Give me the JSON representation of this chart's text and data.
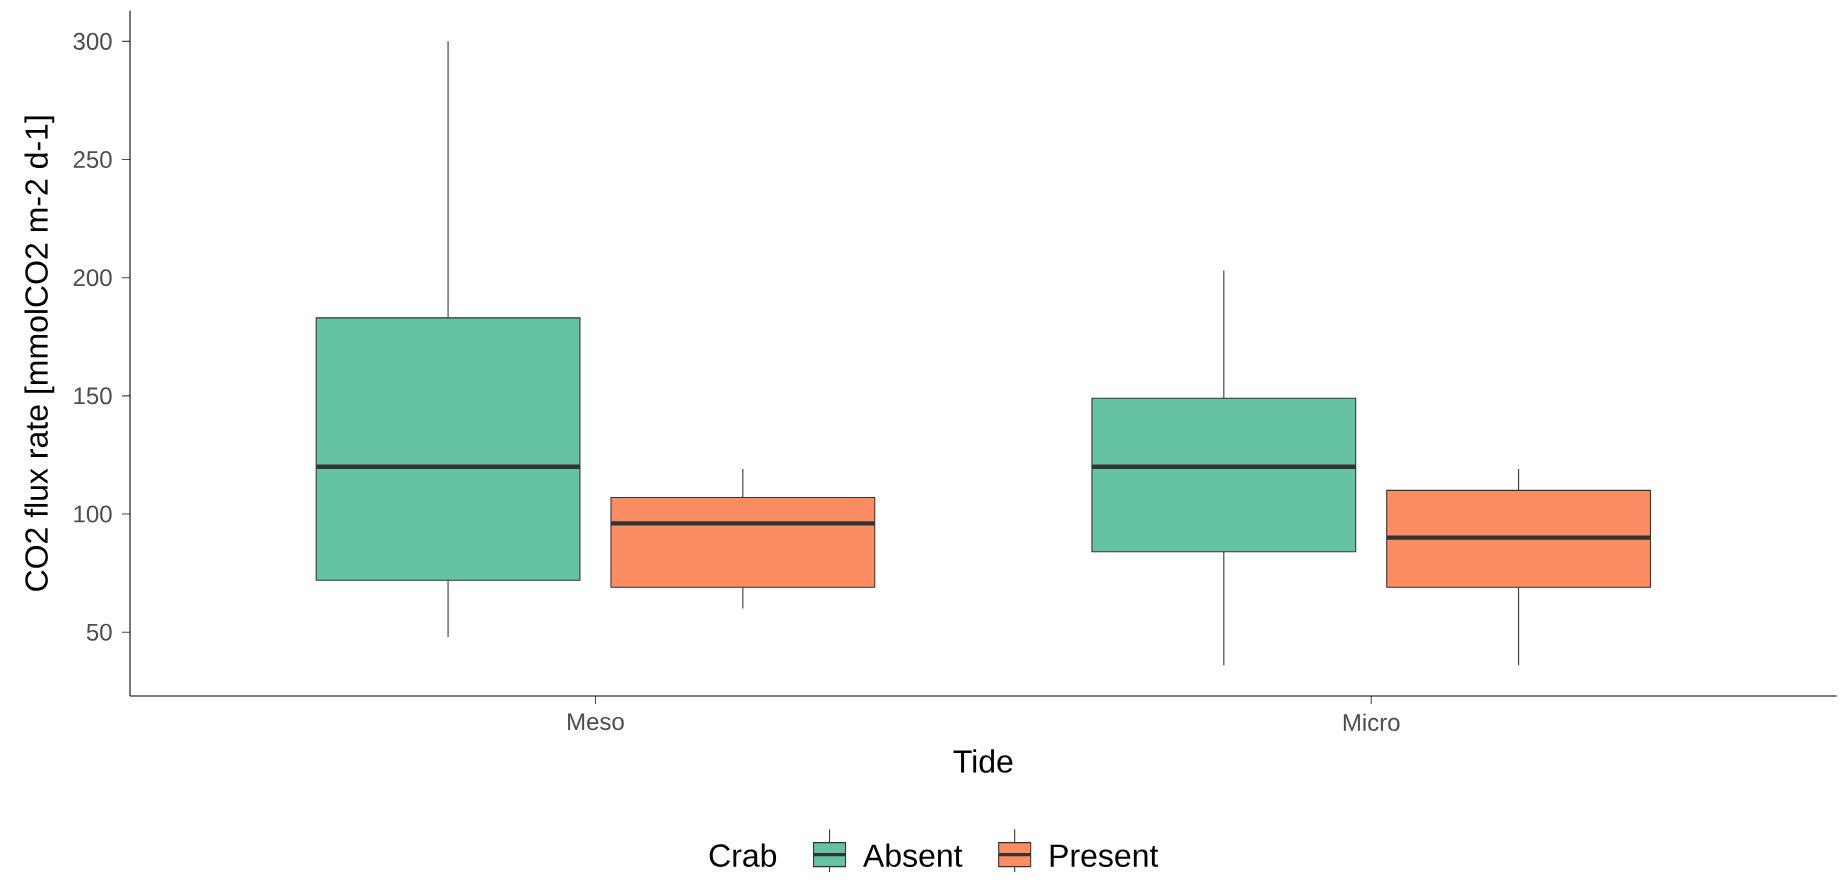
{
  "chart_data": {
    "type": "box",
    "xlabel": "Tide",
    "ylabel": "CO2 flux rate [mmolCO2 m-2 d-1]",
    "legend_title": "Crab",
    "categories": [
      "Meso",
      "Micro"
    ],
    "ylim": [
      23,
      313
    ],
    "yticks": [
      50,
      100,
      150,
      200,
      250,
      300
    ],
    "grid": false,
    "legend": "bottom",
    "series": [
      {
        "name": "Absent",
        "color": "#66c2a5",
        "boxes": [
          {
            "low": 48,
            "q1": 72,
            "median": 120,
            "q3": 183,
            "high": 300
          },
          {
            "low": 36,
            "q1": 84,
            "median": 120,
            "q3": 149,
            "high": 203
          }
        ]
      },
      {
        "name": "Present",
        "color": "#fc8d62",
        "boxes": [
          {
            "low": 60,
            "q1": 69,
            "median": 96,
            "q3": 107,
            "high": 119
          },
          {
            "low": 36,
            "q1": 69,
            "median": 90,
            "q3": 110,
            "high": 119
          }
        ]
      }
    ]
  }
}
